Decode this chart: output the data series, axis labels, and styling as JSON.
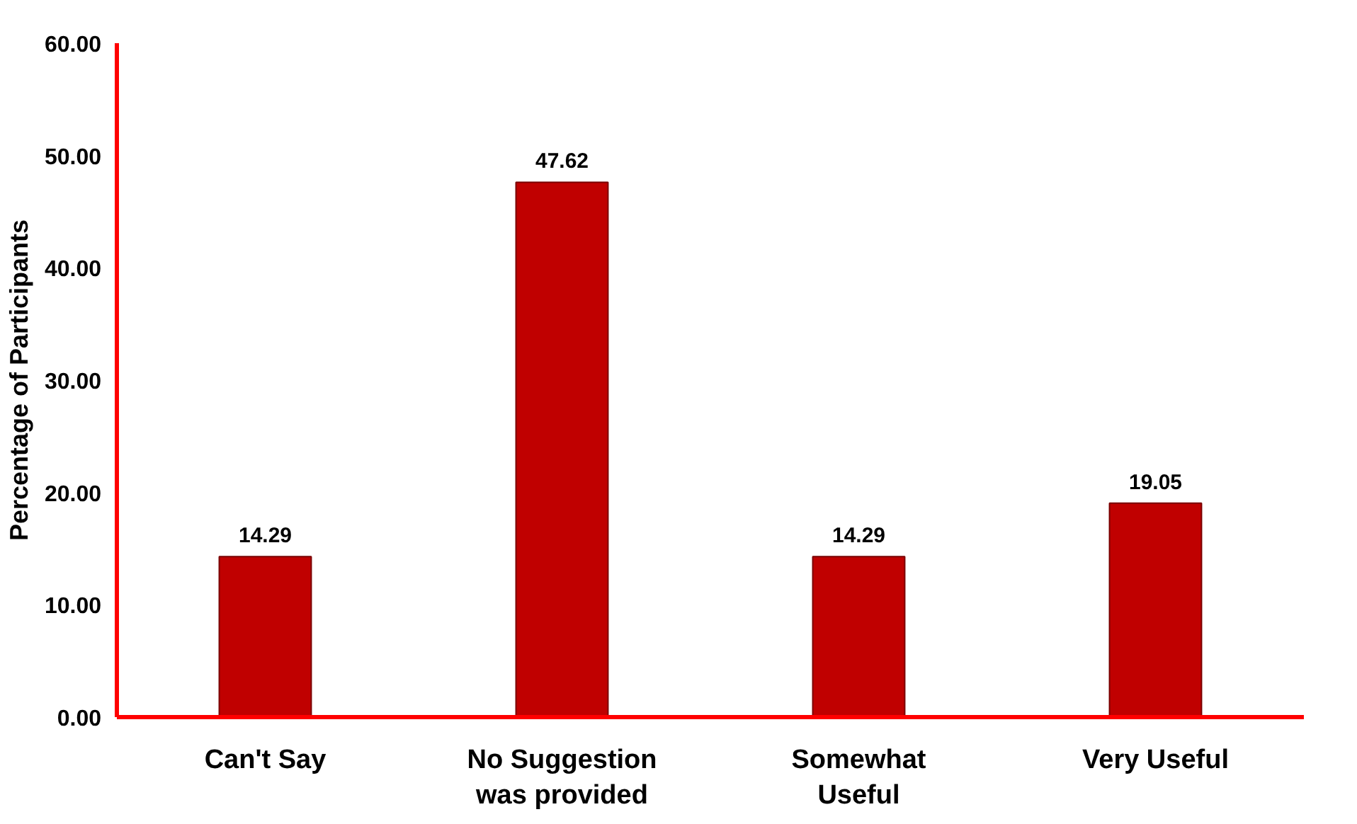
{
  "chart_data": {
    "type": "bar",
    "ylabel": "Percentage of Participants",
    "categories": [
      "Can't Say",
      "No Suggestion\nwas provided",
      "Somewhat\nUseful",
      "Very Useful"
    ],
    "values": [
      14.29,
      47.62,
      14.29,
      19.05
    ],
    "color": "#c00000",
    "data_labels": true,
    "ylim": [
      0,
      60
    ],
    "yticks": [
      {
        "value": 0,
        "label": "0.00"
      },
      {
        "value": 10,
        "label": "10.00"
      },
      {
        "value": 20,
        "label": "20.00"
      },
      {
        "value": 30,
        "label": "30.00"
      },
      {
        "value": 40,
        "label": "40.00"
      },
      {
        "value": 50,
        "label": "50.00"
      },
      {
        "value": 60,
        "label": "60.00"
      }
    ],
    "grid": false
  }
}
